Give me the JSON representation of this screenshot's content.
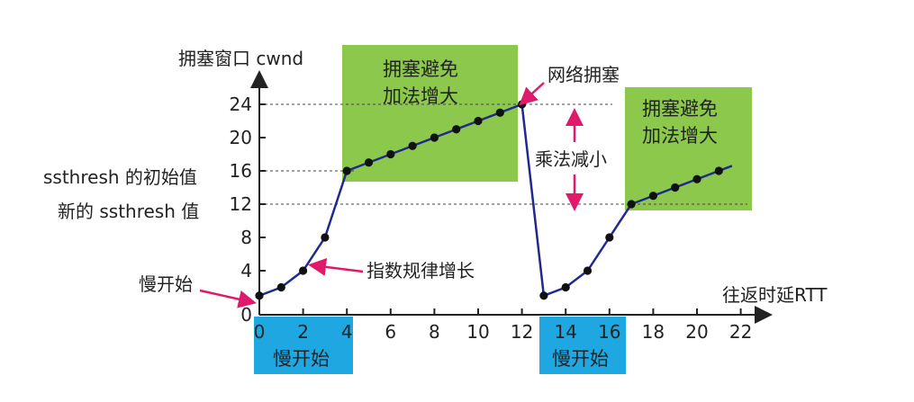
{
  "chart_data": {
    "type": "line",
    "ylabel": "拥塞窗口 cwnd",
    "xlabel": "往返时延RTT",
    "xlim": [
      0,
      22
    ],
    "ylim": [
      0,
      24
    ],
    "xticks": [
      "0",
      "2",
      "4",
      "6",
      "8",
      "10",
      "12",
      "14",
      "16",
      "18",
      "20",
      "22"
    ],
    "yticks": [
      "0",
      "4",
      "8",
      "12",
      "16",
      "20",
      "24"
    ],
    "series": [
      {
        "points": [
          [
            0,
            1
          ],
          [
            1,
            2
          ],
          [
            2,
            4
          ],
          [
            3,
            8
          ],
          [
            4,
            16
          ],
          [
            5,
            17
          ],
          [
            6,
            18
          ],
          [
            7,
            19
          ],
          [
            8,
            20
          ],
          [
            9,
            21
          ],
          [
            10,
            22
          ],
          [
            11,
            23
          ],
          [
            12,
            24
          ],
          [
            13,
            1
          ],
          [
            14,
            2
          ],
          [
            15,
            4
          ],
          [
            16,
            8
          ],
          [
            17,
            12
          ],
          [
            18,
            13
          ],
          [
            19,
            14
          ],
          [
            20,
            15
          ],
          [
            21,
            16
          ],
          [
            21.6,
            16.6
          ]
        ]
      }
    ],
    "reference_lines": [
      {
        "y": 24
      },
      {
        "y": 16
      },
      {
        "y": 12
      }
    ],
    "threshold_labels": {
      "initial": "ssthresh 的初始值",
      "new": "新的 ssthresh 值"
    },
    "annotations": {
      "slow_start": "慢开始",
      "exponential": "指数规律增长",
      "congestion": "网络拥塞",
      "multiplicative_decrease": "乘法减小"
    },
    "phase_boxes": [
      {
        "line1": "拥塞避免",
        "line2": "加法增大"
      },
      {
        "line1": "拥塞避免",
        "line2": "加法增大"
      }
    ],
    "slow_start_boxes": [
      "慢开始",
      "慢开始"
    ],
    "colors": {
      "line": "#1f2a8c",
      "green_box": "#8cc84b",
      "blue_box": "#1ea7e1",
      "arrow": "#e0196b"
    }
  }
}
